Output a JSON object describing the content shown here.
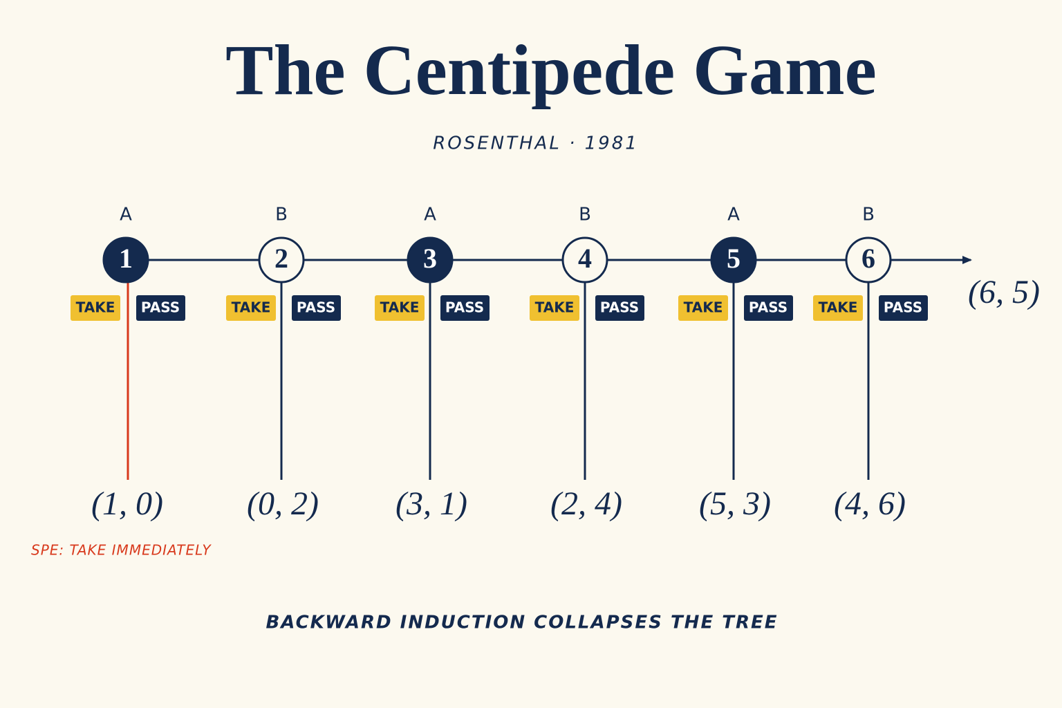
{
  "header": {
    "title": "The Centipede Game",
    "subtitle": "ROSENTHAL · 1981"
  },
  "nodes": [
    {
      "player": "A",
      "label": "1",
      "take": "TAKE",
      "pass": "PASS",
      "payoff": "(1, 0)"
    },
    {
      "player": "B",
      "label": "2",
      "take": "TAKE",
      "pass": "PASS",
      "payoff": "(0, 2)"
    },
    {
      "player": "A",
      "label": "3",
      "take": "TAKE",
      "pass": "PASS",
      "payoff": "(3, 1)"
    },
    {
      "player": "B",
      "label": "4",
      "take": "TAKE",
      "pass": "PASS",
      "payoff": "(2, 4)"
    },
    {
      "player": "A",
      "label": "5",
      "take": "TAKE",
      "pass": "PASS",
      "payoff": "(5, 3)"
    },
    {
      "player": "B",
      "label": "6",
      "take": "TAKE",
      "pass": "PASS",
      "payoff": "(4, 6)"
    }
  ],
  "final_payoff": "(6, 5)",
  "spe_note": "SPE: TAKE IMMEDIATELY",
  "footer": "BACKWARD INDUCTION COLLAPSES THE TREE"
}
